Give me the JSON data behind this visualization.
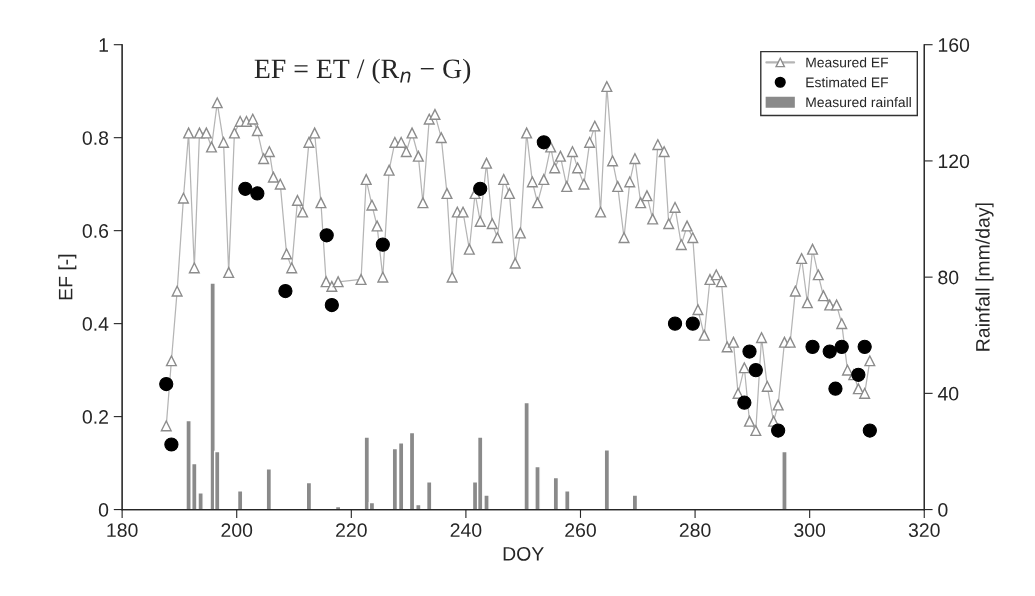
{
  "chart_data": {
    "type": "line",
    "xlabel": "DOY",
    "ylabel": "EF [-]",
    "y2label": "Rainfall [mm/day]",
    "annotations": [
      "EF = ET / (R$_{n}$ − G)"
    ],
    "xlim": [
      180,
      320
    ],
    "xticks": [
      180,
      200,
      220,
      240,
      260,
      280,
      300,
      320
    ],
    "ylim": [
      0,
      1
    ],
    "yticks": [
      0,
      0.2,
      0.4,
      0.6,
      0.8,
      1
    ],
    "y2lim": [
      0,
      160
    ],
    "y2ticks": [
      0,
      40,
      80,
      120,
      160
    ],
    "legend": "top right",
    "grid": false,
    "series": [
      {
        "name": "Measured EF",
        "marker": "triangle",
        "color": "#8c8c8c",
        "x": [
          187.7,
          188.6,
          189.6,
          190.7,
          191.6,
          192.6,
          193.5,
          194.7,
          195.6,
          196.6,
          197.7,
          198.6,
          199.6,
          200.6,
          201.7,
          202.8,
          203.6,
          204.7,
          205.7,
          206.4,
          207.6,
          208.7,
          209.6,
          210.6,
          211.5,
          212.6,
          213.6,
          214.7,
          215.6,
          216.6,
          217.7,
          221.7,
          222.6,
          223.6,
          224.5,
          225.5,
          226.6,
          227.6,
          228.7,
          229.6,
          230.6,
          231.7,
          232.5,
          233.6,
          234.6,
          235.7,
          236.7,
          237.6,
          238.5,
          239.5,
          240.6,
          241.6,
          242.5,
          243.6,
          244.6,
          245.5,
          246.6,
          247.6,
          248.6,
          249.5,
          250.6,
          251.6,
          252.5,
          253.6,
          254.8,
          255.5,
          256.5,
          257.6,
          258.6,
          259.5,
          260.6,
          261.6,
          262.5,
          263.5,
          264.6,
          265.6,
          266.5,
          267.6,
          268.6,
          269.5,
          270.5,
          271.6,
          272.6,
          273.5,
          274.6,
          275.4,
          276.5,
          277.6,
          278.6,
          279.6,
          280.5,
          281.6,
          282.6,
          283.7,
          284.6,
          285.6,
          286.7,
          287.5,
          288.6,
          289.5,
          290.6,
          291.6,
          292.6,
          293.7,
          294.5,
          295.6,
          296.6,
          297.5,
          298.6,
          299.6,
          300.5,
          301.5,
          302.4,
          303.5,
          304.7,
          305.6,
          306.6,
          307.7,
          308.5,
          309.6,
          310.5
        ],
        "values": [
          0.18,
          0.32,
          0.47,
          0.67,
          0.81,
          0.52,
          0.81,
          0.81,
          0.78,
          0.875,
          0.79,
          0.51,
          0.81,
          0.835,
          0.835,
          0.84,
          0.815,
          0.755,
          0.77,
          0.715,
          0.7,
          0.55,
          0.52,
          0.665,
          0.64,
          0.79,
          0.81,
          0.66,
          0.49,
          0.48,
          0.49,
          0.495,
          0.71,
          0.655,
          0.61,
          0.5,
          0.73,
          0.79,
          0.79,
          0.77,
          0.81,
          0.76,
          0.66,
          0.84,
          0.85,
          0.8,
          0.68,
          0.5,
          0.64,
          0.64,
          0.56,
          0.68,
          0.62,
          0.745,
          0.615,
          0.585,
          0.71,
          0.68,
          0.53,
          0.595,
          0.81,
          0.705,
          0.66,
          0.71,
          0.78,
          0.735,
          0.76,
          0.695,
          0.77,
          0.735,
          0.7,
          0.79,
          0.825,
          0.64,
          0.91,
          0.75,
          0.695,
          0.585,
          0.705,
          0.755,
          0.66,
          0.675,
          0.625,
          0.785,
          0.77,
          0.615,
          0.65,
          0.57,
          0.61,
          0.585,
          0.43,
          0.375,
          0.495,
          0.505,
          0.49,
          0.35,
          0.36,
          0.25,
          0.305,
          0.19,
          0.17,
          0.37,
          0.265,
          0.19,
          0.225,
          0.36,
          0.36,
          0.47,
          0.54,
          0.445,
          0.56,
          0.505,
          0.46,
          0.44,
          0.44,
          0.4,
          0.3,
          0.29,
          0.26,
          0.25,
          0.32
        ]
      },
      {
        "name": "Estimated EF",
        "type": "scatter",
        "marker": "circle",
        "color": "#000000",
        "x": [
          187.7,
          188.6,
          201.5,
          203.6,
          208.5,
          215.7,
          216.6,
          225.5,
          242.5,
          253.6,
          276.5,
          279.6,
          288.6,
          289.5,
          290.6,
          294.5,
          300.5,
          303.5,
          304.5,
          305.6,
          308.5,
          309.6,
          310.5
        ],
        "values": [
          0.27,
          0.14,
          0.69,
          0.68,
          0.47,
          0.59,
          0.44,
          0.57,
          0.69,
          0.79,
          0.4,
          0.4,
          0.23,
          0.34,
          0.3,
          0.17,
          0.35,
          0.34,
          0.26,
          0.35,
          0.29,
          0.35,
          0.17
        ]
      },
      {
        "name": "Measured rainfall",
        "type": "bar",
        "axis": "y2",
        "color": "#8a8a8a",
        "x": [
          191.6,
          192.6,
          193.7,
          195.8,
          196.6,
          200.6,
          205.6,
          212.6,
          217.7,
          222.7,
          223.6,
          227.6,
          228.7,
          230.6,
          231.7,
          233.6,
          241.6,
          242.5,
          243.6,
          250.6,
          252.5,
          255.7,
          257.7,
          264.6,
          269.5,
          295.6
        ],
        "values": [
          30.6,
          15.8,
          5.8,
          78,
          20,
          6.5,
          14,
          9.3,
          1,
          25,
          2.4,
          21,
          23,
          26.5,
          1.7,
          9.6,
          9.6,
          25,
          5,
          36.8,
          14.8,
          11,
          6.5,
          20.6,
          5,
          20
        ]
      }
    ]
  }
}
